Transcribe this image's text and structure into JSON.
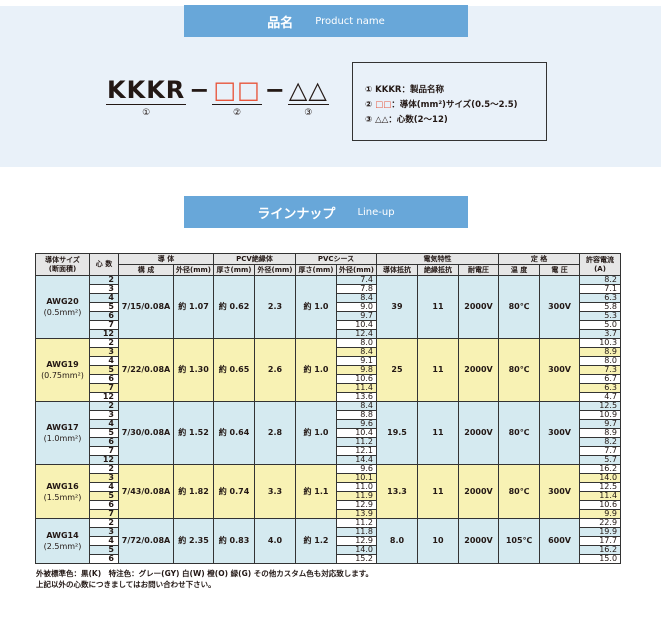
{
  "product_banner": {
    "jp": "品名",
    "en": "Product name"
  },
  "code": {
    "part1": "KKKR",
    "dash": "−",
    "part2": "□□",
    "part3": "△△",
    "n1": "①",
    "n2": "②",
    "n3": "③"
  },
  "legend": [
    {
      "num": "①",
      "sym": "KKKR",
      "text": "：製品名称"
    },
    {
      "num": "②",
      "sym": "□□",
      "text": "：導体(mm²)サイズ(0.5〜2.5)"
    },
    {
      "num": "③",
      "sym": "△△",
      "text": "：心数(2〜12)"
    }
  ],
  "lineup_banner": {
    "jp": "ラインナップ",
    "en": "Line-up"
  },
  "colors": {
    "banner": "#68a7d9",
    "blue_row": "#d5eaf0",
    "yellow_row": "#f8f2b4",
    "header": "#e6e6e6"
  },
  "table": {
    "headers": {
      "size": "導体サイズ",
      "size2": "(断面積)",
      "cores": "心 数",
      "conductor": "導 体",
      "construction": "構 成",
      "od": "外径(mm)",
      "insulation": "PCV絶縁体",
      "thick": "厚さ(mm)",
      "od2": "外径(mm)",
      "sheath": "PVCシース",
      "thick2": "厚さ(mm)",
      "od3": "外径(mm)",
      "electrical": "電気特性",
      "resist": "導体抵抗",
      "insres": "絶縁抵抗",
      "voltage_withstand": "耐電圧",
      "rating": "定 格",
      "temp": "温 度",
      "volt": "電 圧",
      "current": "許容電流",
      "current2": "(A)"
    },
    "groups": [
      {
        "awg": "AWG20",
        "area": "(0.5mm²)",
        "color": "blue",
        "construction": "7/15/0.08A",
        "od": "約 1.07",
        "ins_thick": "約 0.62",
        "ins_od": "2.3",
        "sheath_thick": "約 1.0",
        "resist": "39",
        "insres": "11",
        "withstand": "2000V",
        "temp": "80℃",
        "volt": "300V",
        "rows": [
          {
            "cores": "2",
            "od": "7.4",
            "amp": "8.2"
          },
          {
            "cores": "3",
            "od": "7.8",
            "amp": "7.1"
          },
          {
            "cores": "4",
            "od": "8.4",
            "amp": "6.3"
          },
          {
            "cores": "5",
            "od": "9.0",
            "amp": "5.8"
          },
          {
            "cores": "6",
            "od": "9.7",
            "amp": "5.3"
          },
          {
            "cores": "7",
            "od": "10.4",
            "amp": "5.0"
          },
          {
            "cores": "12",
            "od": "12.4",
            "amp": "3.7"
          }
        ]
      },
      {
        "awg": "AWG19",
        "area": "(0.75mm²)",
        "color": "yellow",
        "construction": "7/22/0.08A",
        "od": "約 1.30",
        "ins_thick": "約 0.65",
        "ins_od": "2.6",
        "sheath_thick": "約 1.0",
        "resist": "25",
        "insres": "11",
        "withstand": "2000V",
        "temp": "80℃",
        "volt": "300V",
        "rows": [
          {
            "cores": "2",
            "od": "8.0",
            "amp": "10.3"
          },
          {
            "cores": "3",
            "od": "8.4",
            "amp": "8.9"
          },
          {
            "cores": "4",
            "od": "9.1",
            "amp": "8.0"
          },
          {
            "cores": "5",
            "od": "9.8",
            "amp": "7.3"
          },
          {
            "cores": "6",
            "od": "10.6",
            "amp": "6.7"
          },
          {
            "cores": "7",
            "od": "11.4",
            "amp": "6.3"
          },
          {
            "cores": "12",
            "od": "13.6",
            "amp": "4.7"
          }
        ]
      },
      {
        "awg": "AWG17",
        "area": "(1.0mm²)",
        "color": "blue",
        "construction": "7/30/0.08A",
        "od": "約 1.52",
        "ins_thick": "約 0.64",
        "ins_od": "2.8",
        "sheath_thick": "約 1.0",
        "resist": "19.5",
        "insres": "11",
        "withstand": "2000V",
        "temp": "80℃",
        "volt": "300V",
        "rows": [
          {
            "cores": "2",
            "od": "8.4",
            "amp": "12.5"
          },
          {
            "cores": "3",
            "od": "8.8",
            "amp": "10.9"
          },
          {
            "cores": "4",
            "od": "9.6",
            "amp": "9.7"
          },
          {
            "cores": "5",
            "od": "10.4",
            "amp": "8.9"
          },
          {
            "cores": "6",
            "od": "11.2",
            "amp": "8.2"
          },
          {
            "cores": "7",
            "od": "12.1",
            "amp": "7.7"
          },
          {
            "cores": "12",
            "od": "14.4",
            "amp": "5.7"
          }
        ]
      },
      {
        "awg": "AWG16",
        "area": "(1.5mm²)",
        "color": "yellow",
        "construction": "7/43/0.08A",
        "od": "約 1.82",
        "ins_thick": "約 0.74",
        "ins_od": "3.3",
        "sheath_thick": "約 1.1",
        "resist": "13.3",
        "insres": "11",
        "withstand": "2000V",
        "temp": "80℃",
        "volt": "300V",
        "rows": [
          {
            "cores": "2",
            "od": "9.6",
            "amp": "16.2"
          },
          {
            "cores": "3",
            "od": "10.1",
            "amp": "14.0"
          },
          {
            "cores": "4",
            "od": "11.0",
            "amp": "12.5"
          },
          {
            "cores": "5",
            "od": "11.9",
            "amp": "11.4"
          },
          {
            "cores": "6",
            "od": "12.9",
            "amp": "10.6"
          },
          {
            "cores": "7",
            "od": "13.9",
            "amp": "9.9"
          }
        ]
      },
      {
        "awg": "AWG14",
        "area": "(2.5mm²)",
        "color": "blue",
        "construction": "7/72/0.08A",
        "od": "約 2.35",
        "ins_thick": "約 0.83",
        "ins_od": "4.0",
        "sheath_thick": "約 1.2",
        "resist": "8.0",
        "insres": "10",
        "withstand": "2000V",
        "temp": "105℃",
        "volt": "600V",
        "rows": [
          {
            "cores": "2",
            "od": "11.2",
            "amp": "22.9"
          },
          {
            "cores": "3",
            "od": "11.8",
            "amp": "19.9"
          },
          {
            "cores": "4",
            "od": "12.9",
            "amp": "17.7"
          },
          {
            "cores": "5",
            "od": "14.0",
            "amp": "16.2"
          },
          {
            "cores": "6",
            "od": "15.2",
            "amp": "15.0"
          }
        ]
      }
    ]
  },
  "notes": [
    "外被標準色：黒(K)　特注色：グレー(GY) 白(W) 橙(O) 緑(G) その他カスタム色も対応致します。",
    "上記以外の心数につきましてはお問い合わせ下さい。"
  ]
}
